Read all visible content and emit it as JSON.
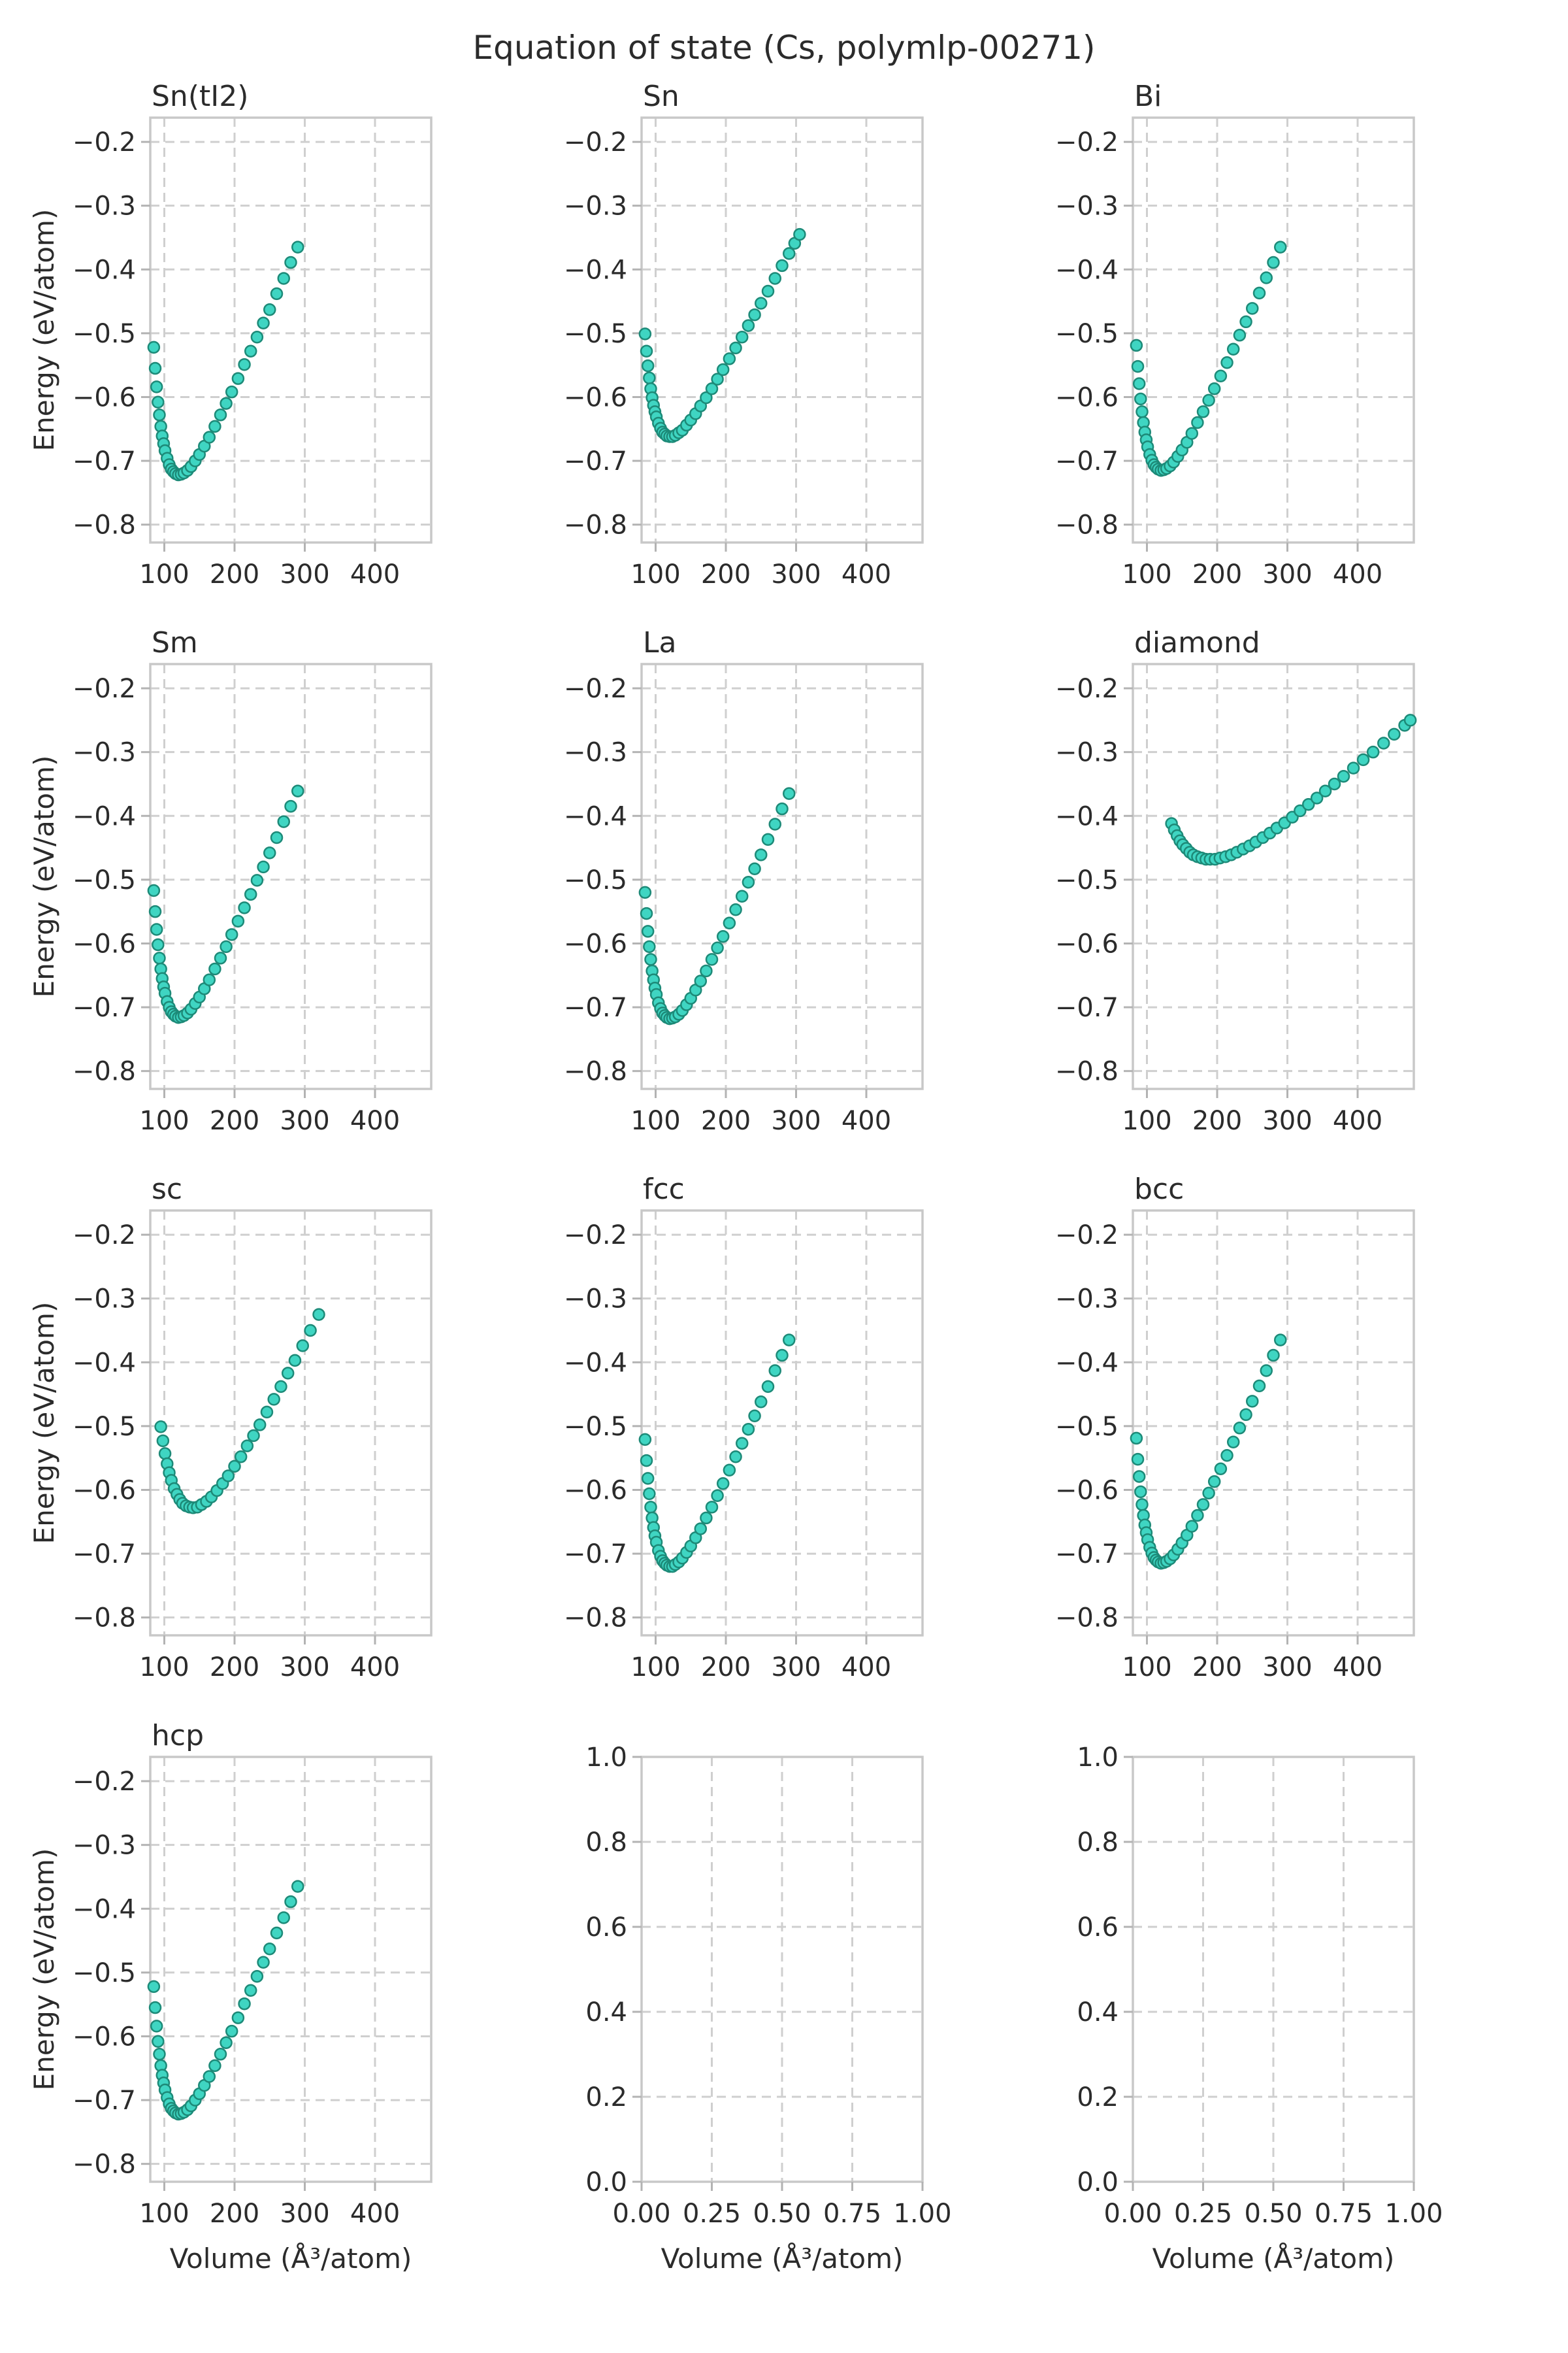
{
  "title": "Equation of state (Cs, polymlp-00271)",
  "axis_labels": {
    "x": "Volume (Å³/atom)",
    "y": "Energy (eV/atom)"
  },
  "style": {
    "marker_fill": "#3fd5c2",
    "marker_edge": "#1d8a78",
    "grid_color": "#cfcfcf",
    "spine_color": "#c8c8c8",
    "tick_color": "#b3b3b3",
    "text_color": "#2b2b2b",
    "background": "#ffffff"
  },
  "chart_data": [
    {
      "type": "scatter",
      "title": "Sn(tI2)",
      "row": 0,
      "col": 0,
      "show_ylabel": true,
      "show_xlabel": false,
      "xlim": [
        80,
        480
      ],
      "ylim": [
        -0.828,
        -0.162
      ],
      "xticks": [
        100,
        200,
        300,
        400
      ],
      "xtick_labels": [
        "100",
        "200",
        "300",
        "400"
      ],
      "yticks": [
        -0.2,
        -0.3,
        -0.4,
        -0.5,
        -0.6,
        -0.7,
        -0.8
      ],
      "ytick_labels": [
        "−0.2",
        "−0.3",
        "−0.4",
        "−0.5",
        "−0.6",
        "−0.7",
        "−0.8"
      ],
      "x": [
        85,
        87,
        89,
        91,
        93,
        95,
        97,
        99,
        101,
        104,
        107,
        110,
        113,
        116,
        120,
        124,
        128,
        133,
        138,
        144,
        150,
        157,
        164,
        172,
        180,
        188,
        196,
        205,
        214,
        223,
        232,
        241,
        250,
        260,
        270,
        280,
        290
      ],
      "y": [
        -0.522,
        -0.555,
        -0.584,
        -0.608,
        -0.628,
        -0.646,
        -0.661,
        -0.673,
        -0.684,
        -0.696,
        -0.706,
        -0.713,
        -0.717,
        -0.72,
        -0.722,
        -0.721,
        -0.719,
        -0.715,
        -0.709,
        -0.7,
        -0.69,
        -0.677,
        -0.663,
        -0.646,
        -0.628,
        -0.61,
        -0.592,
        -0.571,
        -0.549,
        -0.528,
        -0.506,
        -0.484,
        -0.463,
        -0.438,
        -0.414,
        -0.389,
        -0.365
      ]
    },
    {
      "type": "scatter",
      "title": "Sn",
      "row": 0,
      "col": 1,
      "show_ylabel": false,
      "show_xlabel": false,
      "xlim": [
        80,
        480
      ],
      "ylim": [
        -0.828,
        -0.162
      ],
      "xticks": [
        100,
        200,
        300,
        400
      ],
      "xtick_labels": [
        "100",
        "200",
        "300",
        "400"
      ],
      "yticks": [
        -0.2,
        -0.3,
        -0.4,
        -0.5,
        -0.6,
        -0.7,
        -0.8
      ],
      "ytick_labels": [
        "−0.2",
        "−0.3",
        "−0.4",
        "−0.5",
        "−0.6",
        "−0.7",
        "−0.8"
      ],
      "x": [
        85,
        87,
        89,
        91,
        93,
        95,
        97,
        99,
        101,
        104,
        107,
        110,
        113,
        116,
        120,
        124,
        128,
        133,
        138,
        144,
        150,
        157,
        164,
        172,
        180,
        188,
        196,
        205,
        214,
        223,
        232,
        241,
        250,
        260,
        270,
        280,
        290,
        298,
        305
      ],
      "y": [
        -0.501,
        -0.528,
        -0.551,
        -0.57,
        -0.587,
        -0.601,
        -0.613,
        -0.623,
        -0.631,
        -0.641,
        -0.649,
        -0.655,
        -0.658,
        -0.661,
        -0.662,
        -0.662,
        -0.66,
        -0.656,
        -0.652,
        -0.644,
        -0.636,
        -0.626,
        -0.614,
        -0.601,
        -0.587,
        -0.572,
        -0.557,
        -0.54,
        -0.523,
        -0.506,
        -0.488,
        -0.471,
        -0.453,
        -0.434,
        -0.414,
        -0.394,
        -0.375,
        -0.359,
        -0.345
      ]
    },
    {
      "type": "scatter",
      "title": "Bi",
      "row": 0,
      "col": 2,
      "show_ylabel": false,
      "show_xlabel": false,
      "xlim": [
        80,
        480
      ],
      "ylim": [
        -0.828,
        -0.162
      ],
      "xticks": [
        100,
        200,
        300,
        400
      ],
      "xtick_labels": [
        "100",
        "200",
        "300",
        "400"
      ],
      "yticks": [
        -0.2,
        -0.3,
        -0.4,
        -0.5,
        -0.6,
        -0.7,
        -0.8
      ],
      "ytick_labels": [
        "−0.2",
        "−0.3",
        "−0.4",
        "−0.5",
        "−0.6",
        "−0.7",
        "−0.8"
      ],
      "x": [
        85,
        87,
        89,
        91,
        93,
        95,
        97,
        99,
        101,
        104,
        107,
        110,
        113,
        116,
        120,
        124,
        128,
        133,
        138,
        144,
        150,
        157,
        164,
        172,
        180,
        188,
        196,
        205,
        214,
        223,
        232,
        241,
        250,
        260,
        270,
        280,
        290
      ],
      "y": [
        -0.519,
        -0.552,
        -0.579,
        -0.603,
        -0.623,
        -0.64,
        -0.655,
        -0.667,
        -0.678,
        -0.69,
        -0.699,
        -0.706,
        -0.71,
        -0.713,
        -0.715,
        -0.714,
        -0.712,
        -0.708,
        -0.702,
        -0.693,
        -0.683,
        -0.671,
        -0.657,
        -0.64,
        -0.623,
        -0.605,
        -0.587,
        -0.567,
        -0.546,
        -0.525,
        -0.503,
        -0.482,
        -0.461,
        -0.437,
        -0.413,
        -0.389,
        -0.365
      ]
    },
    {
      "type": "scatter",
      "title": "Sm",
      "row": 1,
      "col": 0,
      "show_ylabel": true,
      "show_xlabel": false,
      "xlim": [
        80,
        480
      ],
      "ylim": [
        -0.828,
        -0.162
      ],
      "xticks": [
        100,
        200,
        300,
        400
      ],
      "xtick_labels": [
        "100",
        "200",
        "300",
        "400"
      ],
      "yticks": [
        -0.2,
        -0.3,
        -0.4,
        -0.5,
        -0.6,
        -0.7,
        -0.8
      ],
      "ytick_labels": [
        "−0.2",
        "−0.3",
        "−0.4",
        "−0.5",
        "−0.6",
        "−0.7",
        "−0.8"
      ],
      "x": [
        85,
        87,
        89,
        91,
        93,
        95,
        97,
        99,
        101,
        104,
        107,
        110,
        113,
        116,
        120,
        124,
        128,
        133,
        138,
        144,
        150,
        157,
        164,
        172,
        180,
        188,
        196,
        205,
        214,
        223,
        232,
        241,
        250,
        260,
        270,
        280,
        290
      ],
      "y": [
        -0.517,
        -0.55,
        -0.578,
        -0.602,
        -0.623,
        -0.64,
        -0.655,
        -0.668,
        -0.678,
        -0.691,
        -0.7,
        -0.707,
        -0.711,
        -0.714,
        -0.716,
        -0.715,
        -0.713,
        -0.709,
        -0.703,
        -0.694,
        -0.684,
        -0.671,
        -0.657,
        -0.64,
        -0.623,
        -0.605,
        -0.586,
        -0.565,
        -0.544,
        -0.523,
        -0.501,
        -0.48,
        -0.458,
        -0.434,
        -0.409,
        -0.385,
        -0.361
      ]
    },
    {
      "type": "scatter",
      "title": "La",
      "row": 1,
      "col": 1,
      "show_ylabel": false,
      "show_xlabel": false,
      "xlim": [
        80,
        480
      ],
      "ylim": [
        -0.828,
        -0.162
      ],
      "xticks": [
        100,
        200,
        300,
        400
      ],
      "xtick_labels": [
        "100",
        "200",
        "300",
        "400"
      ],
      "yticks": [
        -0.2,
        -0.3,
        -0.4,
        -0.5,
        -0.6,
        -0.7,
        -0.8
      ],
      "ytick_labels": [
        "−0.2",
        "−0.3",
        "−0.4",
        "−0.5",
        "−0.6",
        "−0.7",
        "−0.8"
      ],
      "x": [
        85,
        87,
        89,
        91,
        93,
        95,
        97,
        99,
        101,
        104,
        107,
        110,
        113,
        116,
        120,
        124,
        128,
        133,
        138,
        144,
        150,
        157,
        164,
        172,
        180,
        188,
        196,
        205,
        214,
        223,
        232,
        241,
        250,
        260,
        270,
        280,
        290
      ],
      "y": [
        -0.52,
        -0.553,
        -0.581,
        -0.605,
        -0.625,
        -0.643,
        -0.657,
        -0.67,
        -0.68,
        -0.693,
        -0.702,
        -0.709,
        -0.713,
        -0.716,
        -0.718,
        -0.717,
        -0.715,
        -0.711,
        -0.705,
        -0.696,
        -0.686,
        -0.673,
        -0.659,
        -0.643,
        -0.625,
        -0.607,
        -0.589,
        -0.568,
        -0.547,
        -0.526,
        -0.504,
        -0.483,
        -0.461,
        -0.437,
        -0.413,
        -0.389,
        -0.365
      ]
    },
    {
      "type": "scatter",
      "title": "diamond",
      "row": 1,
      "col": 2,
      "show_ylabel": false,
      "show_xlabel": false,
      "xlim": [
        80,
        480
      ],
      "ylim": [
        -0.828,
        -0.162
      ],
      "xticks": [
        100,
        200,
        300,
        400
      ],
      "xtick_labels": [
        "100",
        "200",
        "300",
        "400"
      ],
      "yticks": [
        -0.2,
        -0.3,
        -0.4,
        -0.5,
        -0.6,
        -0.7,
        -0.8
      ],
      "ytick_labels": [
        "−0.2",
        "−0.3",
        "−0.4",
        "−0.5",
        "−0.6",
        "−0.7",
        "−0.8"
      ],
      "x": [
        135,
        139,
        143,
        147,
        151,
        156,
        161,
        166,
        172,
        178,
        184,
        190,
        197,
        204,
        212,
        220,
        228,
        237,
        246,
        255,
        265,
        275,
        285,
        296,
        307,
        318,
        330,
        342,
        354,
        367,
        380,
        394,
        408,
        422,
        437,
        452,
        467,
        475
      ],
      "y": [
        -0.412,
        -0.422,
        -0.431,
        -0.439,
        -0.445,
        -0.451,
        -0.457,
        -0.461,
        -0.464,
        -0.466,
        -0.468,
        -0.468,
        -0.468,
        -0.466,
        -0.464,
        -0.461,
        -0.457,
        -0.452,
        -0.447,
        -0.441,
        -0.434,
        -0.427,
        -0.419,
        -0.411,
        -0.402,
        -0.392,
        -0.382,
        -0.372,
        -0.361,
        -0.35,
        -0.338,
        -0.325,
        -0.312,
        -0.3,
        -0.286,
        -0.272,
        -0.258,
        -0.25
      ]
    },
    {
      "type": "scatter",
      "title": "sc",
      "row": 2,
      "col": 0,
      "show_ylabel": true,
      "show_xlabel": false,
      "xlim": [
        80,
        480
      ],
      "ylim": [
        -0.828,
        -0.162
      ],
      "xticks": [
        100,
        200,
        300,
        400
      ],
      "xtick_labels": [
        "100",
        "200",
        "300",
        "400"
      ],
      "yticks": [
        -0.2,
        -0.3,
        -0.4,
        -0.5,
        -0.6,
        -0.7,
        -0.8
      ],
      "ytick_labels": [
        "−0.2",
        "−0.3",
        "−0.4",
        "−0.5",
        "−0.6",
        "−0.7",
        "−0.8"
      ],
      "x": [
        95,
        98,
        101,
        104,
        107,
        110,
        114,
        118,
        122,
        126,
        131,
        136,
        141,
        147,
        153,
        160,
        167,
        175,
        183,
        191,
        200,
        209,
        218,
        227,
        236,
        246,
        256,
        266,
        276,
        286,
        297,
        308,
        320
      ],
      "y": [
        -0.501,
        -0.523,
        -0.543,
        -0.559,
        -0.573,
        -0.585,
        -0.598,
        -0.607,
        -0.615,
        -0.621,
        -0.625,
        -0.627,
        -0.628,
        -0.627,
        -0.623,
        -0.618,
        -0.611,
        -0.601,
        -0.59,
        -0.578,
        -0.563,
        -0.548,
        -0.531,
        -0.515,
        -0.498,
        -0.478,
        -0.458,
        -0.438,
        -0.417,
        -0.397,
        -0.374,
        -0.35,
        -0.325
      ]
    },
    {
      "type": "scatter",
      "title": "fcc",
      "row": 2,
      "col": 1,
      "show_ylabel": false,
      "show_xlabel": false,
      "xlim": [
        80,
        480
      ],
      "ylim": [
        -0.828,
        -0.162
      ],
      "xticks": [
        100,
        200,
        300,
        400
      ],
      "xtick_labels": [
        "100",
        "200",
        "300",
        "400"
      ],
      "yticks": [
        -0.2,
        -0.3,
        -0.4,
        -0.5,
        -0.6,
        -0.7,
        -0.8
      ],
      "ytick_labels": [
        "−0.2",
        "−0.3",
        "−0.4",
        "−0.5",
        "−0.6",
        "−0.7",
        "−0.8"
      ],
      "x": [
        85,
        87,
        89,
        91,
        93,
        95,
        97,
        99,
        101,
        104,
        107,
        110,
        113,
        116,
        120,
        124,
        128,
        133,
        138,
        144,
        150,
        157,
        164,
        172,
        180,
        188,
        196,
        205,
        214,
        223,
        232,
        241,
        250,
        260,
        270,
        280,
        290
      ],
      "y": [
        -0.521,
        -0.554,
        -0.582,
        -0.606,
        -0.627,
        -0.644,
        -0.659,
        -0.672,
        -0.682,
        -0.695,
        -0.704,
        -0.711,
        -0.715,
        -0.718,
        -0.72,
        -0.72,
        -0.717,
        -0.713,
        -0.707,
        -0.698,
        -0.688,
        -0.675,
        -0.661,
        -0.644,
        -0.627,
        -0.609,
        -0.59,
        -0.569,
        -0.548,
        -0.527,
        -0.505,
        -0.484,
        -0.462,
        -0.438,
        -0.413,
        -0.389,
        -0.365
      ]
    },
    {
      "type": "scatter",
      "title": "bcc",
      "row": 2,
      "col": 2,
      "show_ylabel": false,
      "show_xlabel": false,
      "xlim": [
        80,
        480
      ],
      "ylim": [
        -0.828,
        -0.162
      ],
      "xticks": [
        100,
        200,
        300,
        400
      ],
      "xtick_labels": [
        "100",
        "200",
        "300",
        "400"
      ],
      "yticks": [
        -0.2,
        -0.3,
        -0.4,
        -0.5,
        -0.6,
        -0.7,
        -0.8
      ],
      "ytick_labels": [
        "−0.2",
        "−0.3",
        "−0.4",
        "−0.5",
        "−0.6",
        "−0.7",
        "−0.8"
      ],
      "x": [
        85,
        87,
        89,
        91,
        93,
        95,
        97,
        99,
        101,
        104,
        107,
        110,
        113,
        116,
        120,
        124,
        128,
        133,
        138,
        144,
        150,
        157,
        164,
        172,
        180,
        188,
        196,
        205,
        214,
        223,
        232,
        241,
        250,
        260,
        270,
        280,
        290
      ],
      "y": [
        -0.519,
        -0.552,
        -0.579,
        -0.603,
        -0.623,
        -0.64,
        -0.655,
        -0.667,
        -0.678,
        -0.69,
        -0.699,
        -0.706,
        -0.71,
        -0.713,
        -0.715,
        -0.714,
        -0.712,
        -0.708,
        -0.702,
        -0.693,
        -0.683,
        -0.671,
        -0.657,
        -0.64,
        -0.623,
        -0.605,
        -0.587,
        -0.567,
        -0.546,
        -0.525,
        -0.503,
        -0.482,
        -0.461,
        -0.437,
        -0.413,
        -0.389,
        -0.365
      ]
    },
    {
      "type": "scatter",
      "title": "hcp",
      "row": 3,
      "col": 0,
      "show_ylabel": true,
      "show_xlabel": true,
      "xlim": [
        80,
        480
      ],
      "ylim": [
        -0.828,
        -0.162
      ],
      "xticks": [
        100,
        200,
        300,
        400
      ],
      "xtick_labels": [
        "100",
        "200",
        "300",
        "400"
      ],
      "yticks": [
        -0.2,
        -0.3,
        -0.4,
        -0.5,
        -0.6,
        -0.7,
        -0.8
      ],
      "ytick_labels": [
        "−0.2",
        "−0.3",
        "−0.4",
        "−0.5",
        "−0.6",
        "−0.7",
        "−0.8"
      ],
      "x": [
        85,
        87,
        89,
        91,
        93,
        95,
        97,
        99,
        101,
        104,
        107,
        110,
        113,
        116,
        120,
        124,
        128,
        133,
        138,
        144,
        150,
        157,
        164,
        172,
        180,
        188,
        196,
        205,
        214,
        223,
        232,
        241,
        250,
        260,
        270,
        280,
        290
      ],
      "y": [
        -0.522,
        -0.555,
        -0.584,
        -0.608,
        -0.628,
        -0.646,
        -0.661,
        -0.673,
        -0.684,
        -0.696,
        -0.706,
        -0.713,
        -0.717,
        -0.72,
        -0.722,
        -0.721,
        -0.719,
        -0.715,
        -0.709,
        -0.7,
        -0.69,
        -0.677,
        -0.663,
        -0.646,
        -0.628,
        -0.61,
        -0.592,
        -0.571,
        -0.549,
        -0.528,
        -0.506,
        -0.484,
        -0.463,
        -0.438,
        -0.414,
        -0.389,
        -0.365
      ]
    },
    {
      "type": "empty",
      "title": "",
      "row": 3,
      "col": 1,
      "show_ylabel": false,
      "show_xlabel": true,
      "xlim": [
        0,
        1
      ],
      "ylim": [
        0,
        1
      ],
      "xticks": [
        0,
        0.25,
        0.5,
        0.75,
        1
      ],
      "xtick_labels": [
        "0.00",
        "0.25",
        "0.50",
        "0.75",
        "1.00"
      ],
      "yticks": [
        0,
        0.2,
        0.4,
        0.6,
        0.8,
        1
      ],
      "ytick_labels": [
        "0.0",
        "0.2",
        "0.4",
        "0.6",
        "0.8",
        "1.0"
      ],
      "x": [],
      "y": []
    },
    {
      "type": "empty",
      "title": "",
      "row": 3,
      "col": 2,
      "show_ylabel": false,
      "show_xlabel": true,
      "xlim": [
        0,
        1
      ],
      "ylim": [
        0,
        1
      ],
      "xticks": [
        0,
        0.25,
        0.5,
        0.75,
        1
      ],
      "xtick_labels": [
        "0.00",
        "0.25",
        "0.50",
        "0.75",
        "1.00"
      ],
      "yticks": [
        0,
        0.2,
        0.4,
        0.6,
        0.8,
        1
      ],
      "ytick_labels": [
        "0.0",
        "0.2",
        "0.4",
        "0.6",
        "0.8",
        "1.0"
      ],
      "x": [],
      "y": []
    }
  ]
}
